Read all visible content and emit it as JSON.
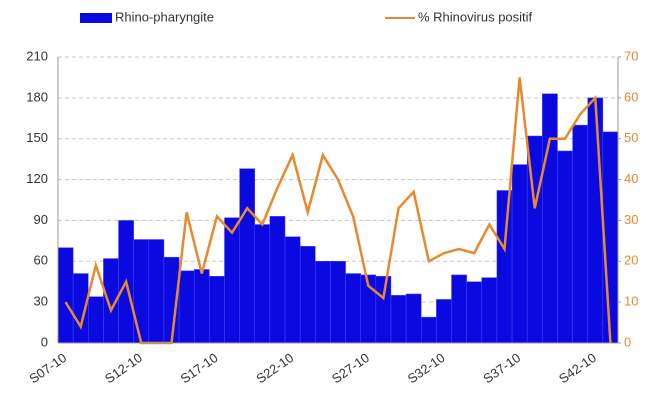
{
  "chart_data": {
    "type": "bar-line",
    "categories": [
      "S07-10",
      null,
      null,
      null,
      null,
      "S12-10",
      null,
      null,
      null,
      null,
      "S17-10",
      null,
      null,
      null,
      null,
      "S22-10",
      null,
      null,
      null,
      null,
      "S27-10",
      null,
      null,
      null,
      null,
      "S32-10",
      null,
      null,
      null,
      null,
      "S37-10",
      null,
      null,
      null,
      null,
      "S42-10",
      null
    ],
    "series": [
      {
        "name": "Rhino-pharyngite",
        "color": "#0a0ae0",
        "values": [
          70,
          51,
          34,
          62,
          90,
          76,
          76,
          63,
          53,
          54,
          49,
          92,
          128,
          87,
          93,
          78,
          71,
          60,
          60,
          51,
          50,
          49,
          35,
          36,
          19,
          32,
          50,
          45,
          48,
          112,
          131,
          152,
          183,
          141,
          160,
          180,
          155
        ]
      },
      {
        "name": "% Rhinovirus positif",
        "color": "#e8892e",
        "axis": "y2",
        "values": [
          10,
          4,
          19,
          8,
          15,
          0,
          0,
          0,
          32,
          17,
          31,
          27,
          33,
          29,
          38,
          46,
          32,
          46,
          40,
          31,
          14,
          11,
          33,
          37,
          20,
          22,
          23,
          22,
          29,
          23,
          65,
          33,
          50,
          50,
          56,
          60,
          0
        ]
      }
    ],
    "ylim": [
      0,
      210
    ],
    "yticks": [
      0,
      30,
      60,
      90,
      120,
      150,
      180,
      210
    ],
    "y2lim": [
      0,
      70
    ],
    "y2ticks": [
      0,
      10,
      20,
      30,
      40,
      50,
      60,
      70
    ],
    "grid": true
  }
}
